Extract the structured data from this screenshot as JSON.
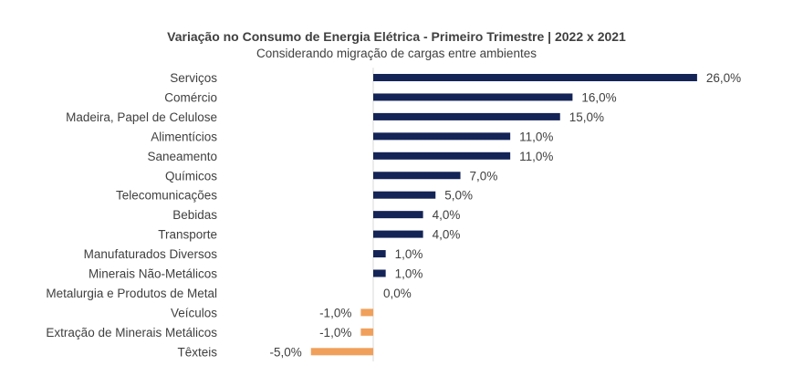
{
  "chart_data": {
    "type": "bar",
    "orientation": "horizontal",
    "title": "Variação no Consumo de Energia Elétrica - Primeiro Trimestre | 2022 x 2021",
    "subtitle": "Considerando migração de cargas entre ambientes",
    "categories": [
      "Serviços",
      "Comércio",
      "Madeira, Papel de Celulose",
      "Alimentícios",
      "Saneamento",
      "Químicos",
      "Telecomunicações",
      "Bebidas",
      "Transporte",
      "Manufaturados Diversos",
      "Minerais Não-Metálicos",
      "Metalurgia e Produtos de Metal",
      "Veículos",
      "Extração de Minerais Metálicos",
      "Têxteis"
    ],
    "values": [
      26.0,
      16.0,
      15.0,
      11.0,
      11.0,
      7.0,
      5.0,
      4.0,
      4.0,
      1.0,
      1.0,
      0.0,
      -1.0,
      -1.0,
      -5.0
    ],
    "data_labels": [
      "26,0%",
      "16,0%",
      "15,0%",
      "11,0%",
      "11,0%",
      "7,0%",
      "5,0%",
      "4,0%",
      "4,0%",
      "1,0%",
      "1,0%",
      "0,0%",
      "-1,0%",
      "-1,0%",
      "-5,0%"
    ],
    "colors": {
      "positive": "#142457",
      "negative": "#F0A05A",
      "axis": "#D9D9D9"
    },
    "grid": false,
    "legend": "none"
  }
}
